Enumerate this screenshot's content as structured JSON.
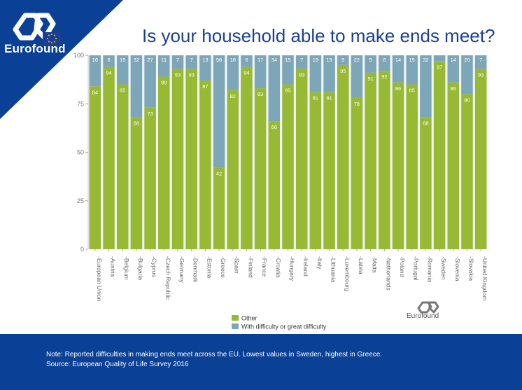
{
  "brand": "Eurofound",
  "title": "Is your household able to make ends meet?",
  "note": "Note: Reported difficulties in making ends meet across the EU. Lowest values in Sweden, highest in Greece.",
  "source": "Source: European Quality of Life Survey 2016",
  "watermark": "Eurofound",
  "colors": {
    "other": "#98b933",
    "difficulty": "#7ea6b9",
    "brand": "#0a4095"
  },
  "chart_data": {
    "type": "bar",
    "stacked": true,
    "categories": [
      "European Union",
      "Austria",
      "Belgium",
      "Bulgaria",
      "Cyprus",
      "Czech Republic",
      "Germany",
      "Denmark",
      "Estonia",
      "Greece",
      "Spain",
      "Finland",
      "France",
      "Croatia",
      "Hungary",
      "Ireland",
      "Italy",
      "Lithuania",
      "Luxembourg",
      "Latvia",
      "Malta",
      "Netherlands",
      "Poland",
      "Portugal",
      "Romania",
      "Sweden",
      "Slovenia",
      "Slovakia",
      "United Kingdom"
    ],
    "series": [
      {
        "name": "Other",
        "values": [
          84,
          94,
          85,
          68,
          73,
          89,
          93,
          93,
          87,
          42,
          82,
          94,
          83,
          66,
          85,
          93,
          81,
          81,
          95,
          78,
          91,
          92,
          86,
          85,
          68,
          97,
          86,
          80,
          93
        ]
      },
      {
        "name": "With difficulty or great difficulty",
        "values": [
          16,
          6,
          15,
          32,
          27,
          11,
          7,
          7,
          13,
          58,
          18,
          6,
          17,
          34,
          15,
          7,
          19,
          19,
          5,
          22,
          9,
          8,
          14,
          15,
          32,
          null,
          14,
          20,
          7
        ]
      }
    ],
    "ylim": [
      0,
      100
    ],
    "yticks": [
      0,
      25,
      50,
      75,
      100
    ],
    "legend": "bottom"
  }
}
